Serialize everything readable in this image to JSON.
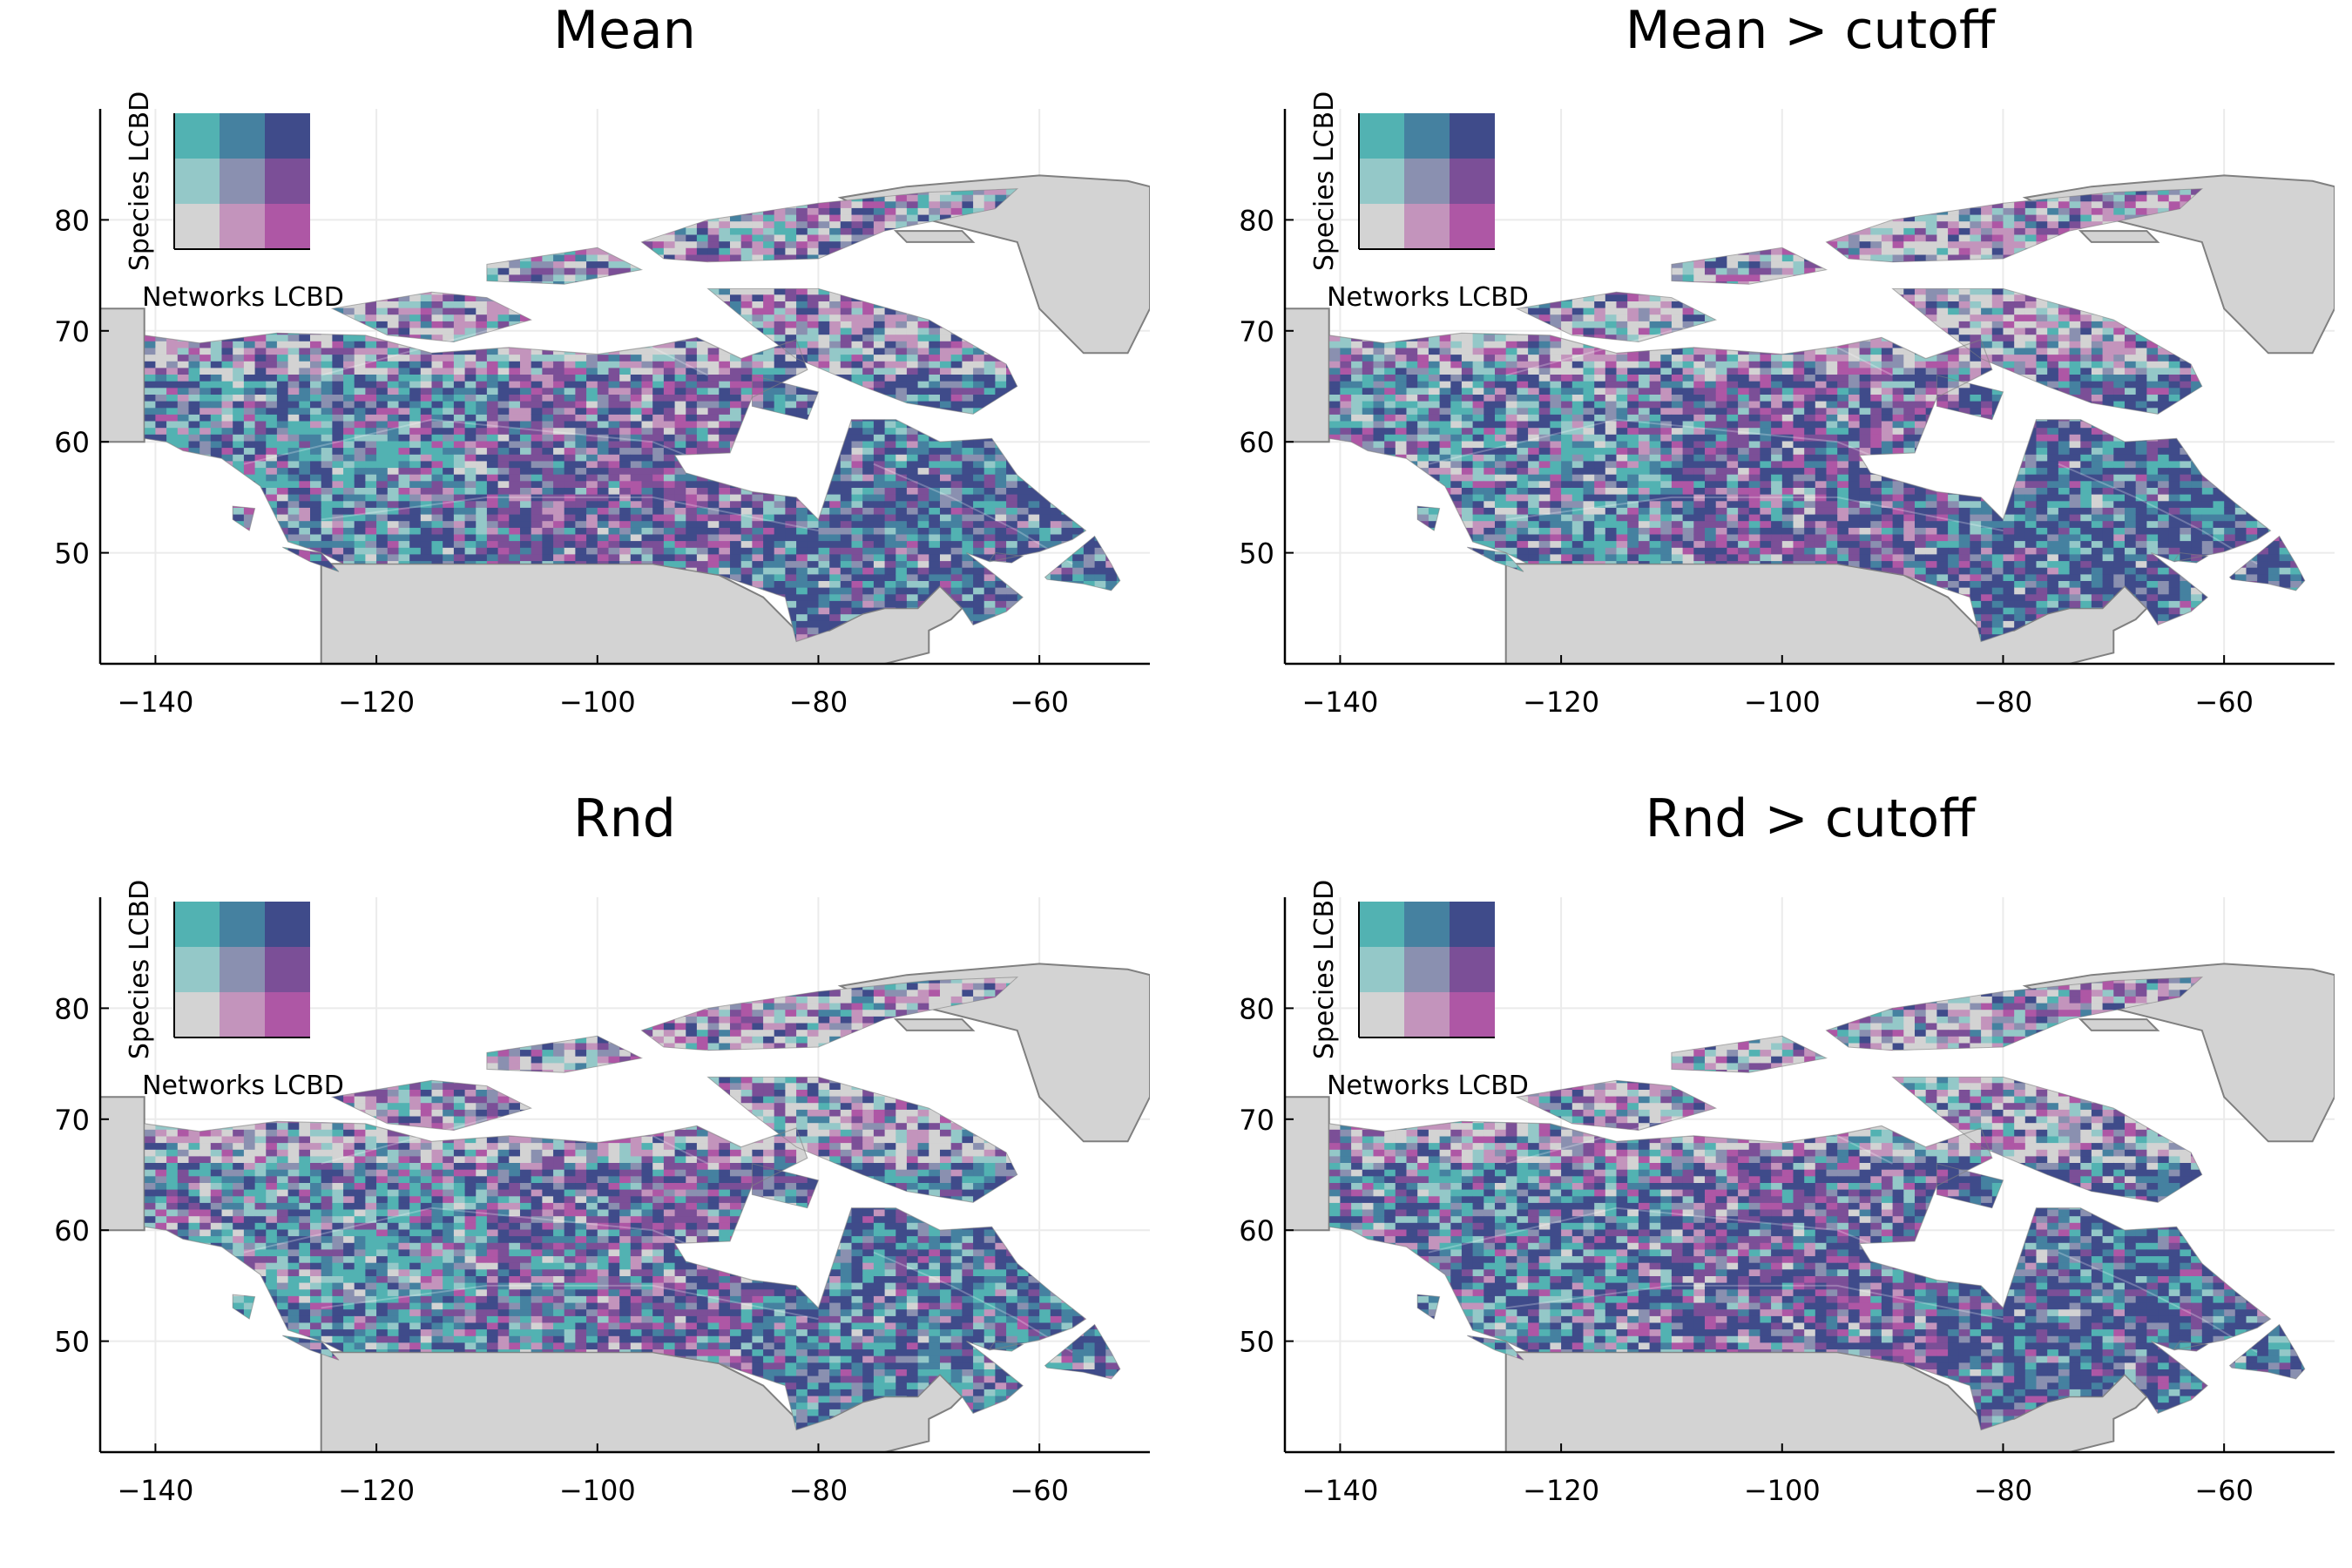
{
  "figure": {
    "x_ticks": [
      -140,
      -120,
      -100,
      -80,
      -60
    ],
    "y_ticks": [
      50,
      60,
      70,
      80
    ],
    "x_range": [
      -145,
      -50
    ],
    "y_range": [
      40,
      90
    ],
    "colors": {
      "land": "#d3d3d3",
      "coast": "#808080",
      "grid": "#ebebeb",
      "axis": "#000000"
    },
    "legend": {
      "y_label": "Species LCBD",
      "x_label": "Networks LCBD",
      "colors": [
        [
          "#52b2b2",
          "#4581a0",
          "#3f4b8a"
        ],
        [
          "#94c8c8",
          "#8a90b0",
          "#7b4f97"
        ],
        [
          "#d3d3d3",
          "#c394bc",
          "#ae57a5"
        ]
      ]
    },
    "panels": [
      {
        "title": "Mean",
        "dominant": "mixed"
      },
      {
        "title": "Mean > cutoff",
        "dominant": "mixed"
      },
      {
        "title": "Rnd",
        "dominant": "mixed"
      },
      {
        "title": "Rnd > cutoff",
        "dominant": "mixed"
      }
    ]
  }
}
